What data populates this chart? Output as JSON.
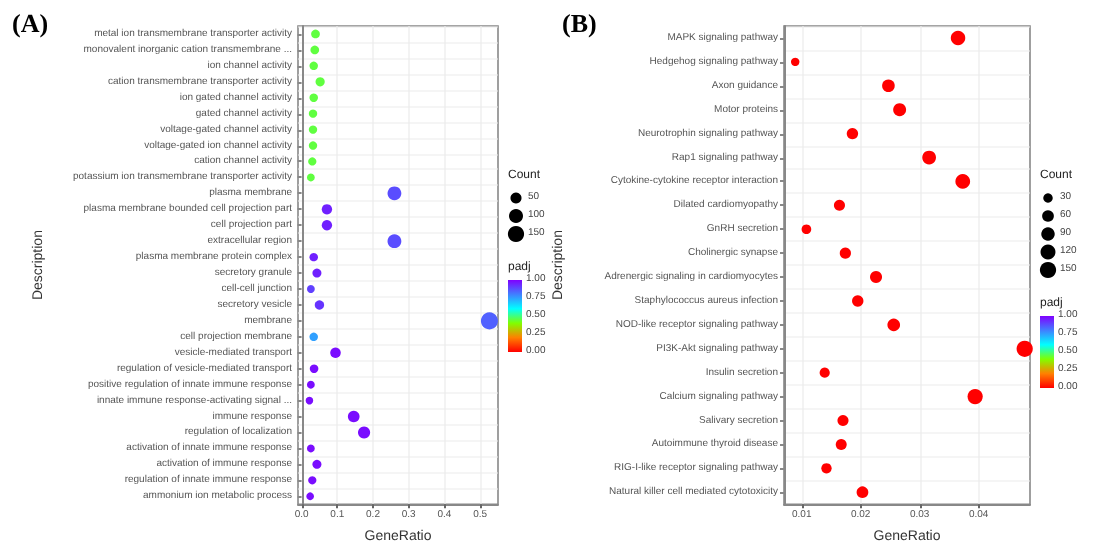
{
  "chart_data": [
    {
      "type": "bubble",
      "orientation": "horizontal",
      "title": "(A)",
      "xlabel": "GeneRatio",
      "ylabel": "Description",
      "legend_title": "Count",
      "clabel": "padj",
      "grid": true,
      "categories": [
        "metal ion transmembrane transporter activity",
        "monovalent inorganic cation transmembrane ...",
        "ion channel activity",
        "cation transmembrane transporter activity",
        "ion gated channel activity",
        "gated channel activity",
        "voltage-gated channel activity",
        "voltage-gated ion channel activity",
        "cation channel activity",
        "potassium ion transmembrane transporter activity",
        "plasma membrane",
        "plasma membrane bounded cell projection part",
        "cell projection part",
        "extracellular region",
        "plasma membrane protein complex",
        "secretory granule",
        "cell-cell junction",
        "secretory vesicle",
        "membrane",
        "cell projection membrane",
        "vesicle-mediated transport",
        "regulation of vesicle-mediated transport",
        "positive regulation of innate immune response",
        "innate immune response-activating signal ...",
        "immune response",
        "regulation of localization",
        "activation of innate immune response",
        "activation of immune response",
        "regulation of innate immune response",
        "ammonium ion metabolic process"
      ],
      "values": [
        0.039,
        0.037,
        0.034,
        0.052,
        0.034,
        0.032,
        0.032,
        0.032,
        0.03,
        0.026,
        0.26,
        0.071,
        0.071,
        0.26,
        0.034,
        0.043,
        0.026,
        0.05,
        0.526,
        0.034,
        0.095,
        0.035,
        0.026,
        0.022,
        0.146,
        0.175,
        0.026,
        0.043,
        0.03,
        0.024
      ],
      "sizes": [
        22,
        22,
        20,
        27,
        20,
        19,
        19,
        19,
        18,
        15,
        97,
        40,
        40,
        97,
        20,
        25,
        15,
        29,
        170,
        20,
        43,
        21,
        15,
        13,
        59,
        67,
        15,
        25,
        18,
        14
      ],
      "cvalues": [
        0.45,
        0.45,
        0.45,
        0.45,
        0.45,
        0.45,
        0.45,
        0.45,
        0.45,
        0.45,
        0.88,
        0.95,
        0.95,
        0.88,
        0.95,
        0.95,
        0.9,
        0.92,
        0.85,
        0.75,
        0.98,
        0.98,
        0.98,
        0.98,
        0.98,
        0.98,
        0.98,
        0.98,
        0.98,
        0.98
      ],
      "xlim": [
        -0.01,
        0.55
      ],
      "xticks": [
        {
          "value": 0,
          "label": "0.0"
        },
        {
          "value": 0.1,
          "label": "0.1"
        },
        {
          "value": 0.2,
          "label": "0.2"
        },
        {
          "value": 0.3,
          "label": "0.3"
        },
        {
          "value": 0.4,
          "label": "0.4"
        },
        {
          "value": 0.5,
          "label": "0.5"
        }
      ],
      "size_legend": [
        50,
        100,
        150
      ],
      "clim": [
        0,
        1
      ],
      "cticks": [
        {
          "value": 0,
          "label": "0.00"
        },
        {
          "value": 0.25,
          "label": "0.25"
        },
        {
          "value": 0.5,
          "label": "0.50"
        },
        {
          "value": 0.75,
          "label": "0.75"
        },
        {
          "value": 1,
          "label": "1.00"
        }
      ]
    },
    {
      "type": "bubble",
      "orientation": "horizontal",
      "title": "(B)",
      "xlabel": "GeneRatio",
      "ylabel": "Description",
      "legend_title": "Count",
      "clabel": "padj",
      "grid": true,
      "categories": [
        "MAPK signaling pathway",
        "Hedgehog signaling pathway",
        "Axon guidance",
        "Motor proteins",
        "Neurotrophin signaling pathway",
        "Rap1 signaling pathway",
        "Cytokine-cytokine receptor interaction",
        "Dilated cardiomyopathy",
        "GnRH secretion",
        "Cholinergic synapse",
        "Adrenergic signaling in cardiomyocytes",
        "Staphylococcus aureus infection",
        "NOD-like receptor signaling pathway",
        "PI3K-Akt signaling pathway",
        "Insulin secretion",
        "Calcium signaling pathway",
        "Salivary secretion",
        "Autoimmune thyroid disease",
        "RIG-I-like receptor signaling pathway",
        "Natural killer cell mediated cytotoxicity"
      ],
      "values": [
        0.0365,
        0.0089,
        0.0247,
        0.0266,
        0.0186,
        0.0316,
        0.0373,
        0.0164,
        0.0108,
        0.0174,
        0.0226,
        0.0195,
        0.0256,
        0.0478,
        0.0139,
        0.0394,
        0.017,
        0.0167,
        0.0142,
        0.0203
      ],
      "sizes": [
        110,
        20,
        75,
        80,
        55,
        95,
        115,
        50,
        32,
        52,
        65,
        55,
        75,
        150,
        38,
        125,
        50,
        48,
        40,
        60
      ],
      "cvalues": [
        0,
        0,
        0,
        0,
        0,
        0,
        0,
        0,
        0,
        0,
        0,
        0,
        0,
        0,
        0,
        0,
        0,
        0,
        0,
        0
      ],
      "xlim": [
        0.007,
        0.0487
      ],
      "xticks": [
        0.01,
        0.02,
        0.03,
        0.04
      ],
      "size_legend": [
        30,
        60,
        90,
        120,
        150
      ],
      "clim": [
        0,
        1
      ],
      "cticks": [
        {
          "value": 0,
          "label": "0.00"
        },
        {
          "value": 0.25,
          "label": "0.25"
        },
        {
          "value": 0.5,
          "label": "0.50"
        },
        {
          "value": 0.75,
          "label": "0.75"
        },
        {
          "value": 1,
          "label": "1.00"
        }
      ]
    }
  ]
}
